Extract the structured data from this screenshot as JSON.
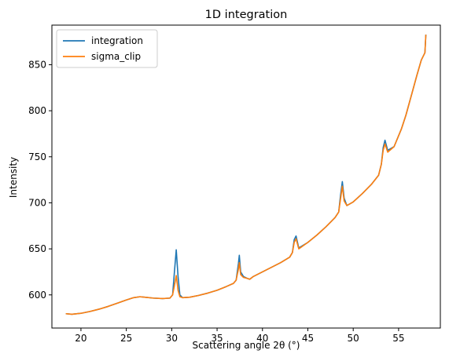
{
  "chart_data": {
    "type": "line",
    "title": "1D integration",
    "xlabel": "Scattering angle 2θ (°)",
    "ylabel": "Intensity",
    "xlim": [
      16.8,
      59.6
    ],
    "ylim": [
      564,
      893
    ],
    "xticks": [
      20,
      25,
      30,
      35,
      40,
      45,
      50,
      55
    ],
    "yticks": [
      600,
      650,
      700,
      750,
      800,
      850
    ],
    "grid": false,
    "legend_position": "top-left",
    "series": [
      {
        "name": "integration",
        "color": "#1f77b4",
        "x": [
          18.4,
          19.0,
          20.0,
          21.0,
          22.0,
          23.0,
          24.0,
          25.0,
          25.8,
          26.5,
          27.0,
          28.0,
          29.0,
          29.8,
          30.1,
          30.3,
          30.5,
          30.7,
          30.9,
          31.2,
          32.0,
          33.0,
          34.0,
          35.0,
          36.0,
          36.8,
          37.1,
          37.35,
          37.45,
          37.6,
          37.9,
          38.3,
          38.6,
          39.0,
          40.0,
          41.0,
          42.0,
          43.0,
          43.3,
          43.5,
          43.7,
          44.0,
          45.0,
          46.0,
          47.0,
          48.0,
          48.4,
          48.6,
          48.8,
          49.0,
          49.3,
          50.0,
          51.0,
          52.0,
          52.8,
          53.1,
          53.3,
          53.5,
          53.8,
          54.5,
          55.3,
          55.8,
          56.5,
          57.0,
          57.5,
          57.9,
          58.0
        ],
        "values": [
          579.5,
          579,
          580,
          582,
          584.5,
          587.5,
          591,
          594.5,
          597,
          598,
          597.5,
          596.5,
          596,
          596.5,
          600,
          625,
          649,
          620,
          600,
          597,
          597.5,
          599.5,
          602,
          605,
          609,
          612.5,
          616,
          634,
          643,
          625,
          620,
          618,
          617,
          620,
          625,
          630,
          635,
          641,
          646,
          660,
          664,
          651,
          657,
          665,
          674,
          684,
          690,
          708,
          723,
          705,
          697,
          701,
          710,
          720,
          730,
          742,
          760,
          768,
          757,
          761,
          780,
          795,
          820,
          838,
          855,
          863,
          882
        ]
      },
      {
        "name": "sigma_clip",
        "color": "#ff7f0e",
        "x": [
          18.4,
          19.0,
          20.0,
          21.0,
          22.0,
          23.0,
          24.0,
          25.0,
          25.8,
          26.5,
          27.0,
          28.0,
          29.0,
          29.8,
          30.1,
          30.3,
          30.5,
          30.7,
          30.9,
          31.2,
          32.0,
          33.0,
          34.0,
          35.0,
          36.0,
          36.8,
          37.1,
          37.35,
          37.45,
          37.6,
          37.9,
          38.3,
          38.6,
          39.0,
          40.0,
          41.0,
          42.0,
          43.0,
          43.3,
          43.5,
          43.7,
          44.0,
          45.0,
          46.0,
          47.0,
          48.0,
          48.4,
          48.6,
          48.8,
          49.0,
          49.3,
          50.0,
          51.0,
          52.0,
          52.8,
          53.1,
          53.3,
          53.5,
          53.8,
          54.5,
          55.3,
          55.8,
          56.5,
          57.0,
          57.5,
          57.9,
          58.0
        ],
        "values": [
          579.5,
          579,
          580,
          582,
          584.5,
          587.5,
          591,
          594.5,
          597,
          598,
          597.5,
          596.5,
          596,
          596.5,
          600,
          610,
          621,
          605,
          598,
          597,
          597.5,
          599.5,
          602,
          605,
          609,
          612.5,
          616,
          628,
          635,
          622,
          619,
          618,
          617,
          620,
          625,
          630,
          635,
          641,
          646,
          657,
          661,
          650,
          657,
          665,
          674,
          684,
          690,
          704,
          718,
          702,
          697,
          701,
          710,
          720,
          730,
          742,
          757,
          764,
          755,
          761,
          780,
          795,
          820,
          838,
          855,
          863,
          882
        ]
      }
    ]
  }
}
